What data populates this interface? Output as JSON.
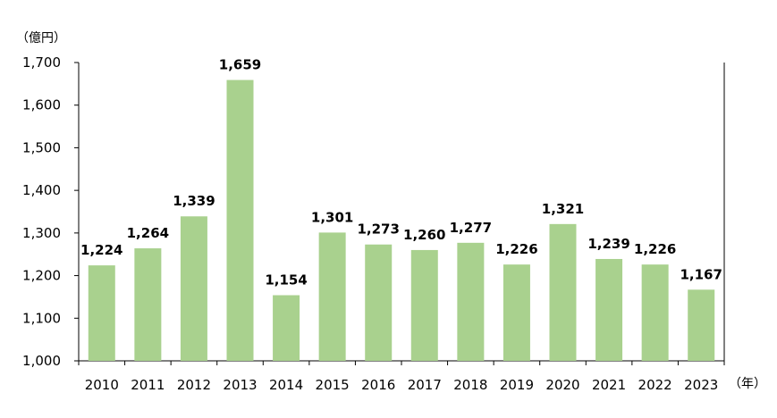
{
  "chart_data": {
    "type": "bar",
    "title": "",
    "ylabel": "（億円）",
    "xlabel": "（年）",
    "categories": [
      "2010",
      "2011",
      "2012",
      "2013",
      "2014",
      "2015",
      "2016",
      "2017",
      "2018",
      "2019",
      "2020",
      "2021",
      "2022",
      "2023"
    ],
    "values": [
      1224,
      1264,
      1339,
      1659,
      1154,
      1301,
      1273,
      1260,
      1277,
      1226,
      1321,
      1239,
      1226,
      1167
    ],
    "data_labels": [
      "1,224",
      "1,264",
      "1,339",
      "1,659",
      "1,154",
      "1,301",
      "1,273",
      "1,260",
      "1,277",
      "1,226",
      "1,321",
      "1,239",
      "1,226",
      "1,167"
    ],
    "ylim": [
      1000,
      1700
    ],
    "yticks": [
      1000,
      1100,
      1200,
      1300,
      1400,
      1500,
      1600,
      1700
    ],
    "ytick_labels": [
      "1,000",
      "1,100",
      "1,200",
      "1,300",
      "1,400",
      "1,500",
      "1,600",
      "1,700"
    ],
    "grid": false,
    "legend": "none",
    "bar_color": "#a9d18e",
    "axis_color": "#000000"
  }
}
